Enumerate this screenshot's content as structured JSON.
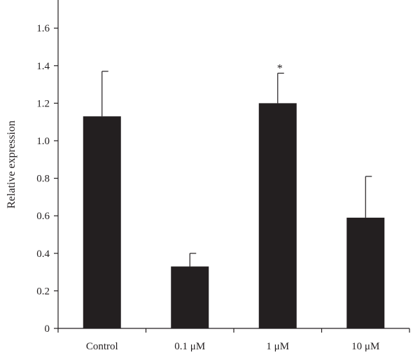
{
  "chart_data": {
    "type": "bar",
    "categories": [
      "Control",
      "0.1 μM",
      "1 μM",
      "10 μM"
    ],
    "values": [
      1.13,
      0.33,
      1.2,
      0.59
    ],
    "errors": [
      0.24,
      0.07,
      0.16,
      0.22
    ],
    "annotations": [
      "",
      "",
      "*",
      ""
    ],
    "ylabel": "Relative expression",
    "xlabel": "",
    "title": "",
    "ylim": [
      0,
      1.75
    ],
    "yticks": [
      "0",
      "0.2",
      "0.4",
      "0.6",
      "0.8",
      "1.0",
      "1.2",
      "1.4",
      "1.6"
    ],
    "bar_color": "#231f20",
    "grid": false
  }
}
